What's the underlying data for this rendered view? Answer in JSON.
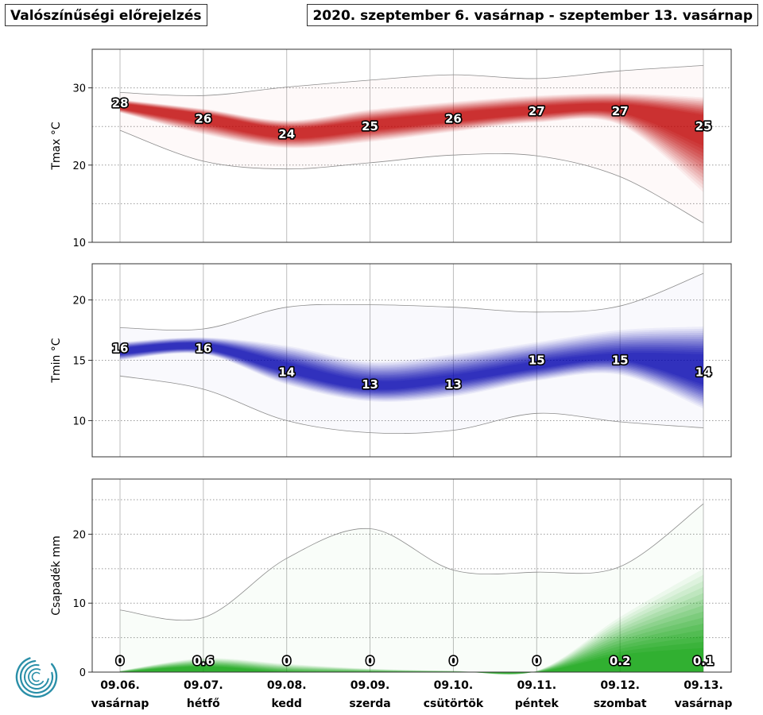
{
  "header": {
    "left_title": "Valószínűségi előrejelzés",
    "right_title": "2020. szeptember 6. vasárnap - szeptember 13. vasárnap"
  },
  "x_axis": {
    "dates": [
      "09.06.",
      "09.07.",
      "09.08.",
      "09.09.",
      "09.10.",
      "09.11.",
      "09.12.",
      "09.13."
    ],
    "days": [
      "vasárnap",
      "hétfő",
      "kedd",
      "szerda",
      "csütörtök",
      "péntek",
      "szombat",
      "vasárnap"
    ]
  },
  "logo": {
    "icon": "weather-service-logo-icon",
    "color": "#2a8fa8"
  },
  "chart_data": [
    {
      "type": "area",
      "ylabel": "Tmax °C",
      "ylim": [
        10,
        35
      ],
      "yticks": [
        10,
        20,
        30
      ],
      "grid": true,
      "color": "#c00000",
      "median": [
        28,
        26,
        24,
        25,
        26,
        27,
        27,
        25
      ],
      "labels": [
        "28",
        "26",
        "24",
        "25",
        "26",
        "27",
        "27",
        "25"
      ],
      "band_inner_low": [
        27.3,
        25.4,
        23.5,
        24.5,
        25.6,
        26.6,
        26.8,
        22.5
      ],
      "band_inner_high": [
        28.0,
        26.6,
        24.8,
        25.8,
        26.8,
        27.6,
        27.9,
        26.5
      ],
      "band_outer_low": [
        26.8,
        24.0,
        22.2,
        23.0,
        24.3,
        25.5,
        25.2,
        16.5
      ],
      "band_outer_high": [
        28.5,
        27.3,
        25.8,
        27.2,
        28.2,
        29.0,
        29.3,
        28.8
      ],
      "min_line": [
        24.5,
        20.5,
        19.5,
        20.3,
        21.3,
        21.2,
        18.5,
        12.5
      ],
      "max_line": [
        29.4,
        29.0,
        30.1,
        31.0,
        31.7,
        31.2,
        32.2,
        32.9
      ]
    },
    {
      "type": "area",
      "ylabel": "Tmin °C",
      "ylim": [
        7,
        23
      ],
      "yticks": [
        10,
        15,
        20
      ],
      "grid": true,
      "color": "#0000b0",
      "median": [
        16,
        16,
        14,
        13,
        13,
        15,
        15,
        14
      ],
      "labels": [
        "16",
        "16",
        "14",
        "13",
        "13",
        "15",
        "15",
        "14"
      ],
      "band_inner_low": [
        15.5,
        15.9,
        14.0,
        12.6,
        13.2,
        14.3,
        15.0,
        13.0
      ],
      "band_inner_high": [
        16.0,
        16.4,
        14.8,
        13.3,
        13.8,
        14.9,
        15.6,
        15.5
      ],
      "band_outer_low": [
        15.0,
        15.5,
        13.0,
        11.6,
        12.0,
        13.3,
        13.8,
        11.0
      ],
      "band_outer_high": [
        16.5,
        16.9,
        16.2,
        14.9,
        15.5,
        16.5,
        17.5,
        17.8
      ],
      "min_line": [
        13.7,
        12.6,
        10.0,
        9.0,
        9.2,
        10.6,
        9.9,
        9.4
      ],
      "max_line": [
        17.7,
        17.6,
        19.4,
        19.6,
        19.4,
        19.0,
        19.5,
        22.2
      ]
    },
    {
      "type": "area",
      "ylabel": "Csapadék mm",
      "ylim": [
        0,
        28
      ],
      "yticks": [
        0,
        10,
        20
      ],
      "grid": true,
      "color": "#00a000",
      "median": [
        0,
        0.6,
        0,
        0,
        0,
        0,
        0.2,
        0.1
      ],
      "labels": [
        "0",
        "0.6",
        "0",
        "0",
        "0",
        "0",
        "0.2",
        "0.1"
      ],
      "band_inner_low": [
        0,
        0,
        0,
        0,
        0,
        0,
        0,
        0
      ],
      "band_inner_high": [
        0,
        0.8,
        0,
        0,
        0,
        0,
        2.5,
        3.5
      ],
      "band_outer_low": [
        0,
        0,
        0,
        0,
        0,
        0,
        0,
        0
      ],
      "band_outer_high": [
        0.2,
        2.0,
        1.2,
        0.5,
        0.2,
        0.2,
        8.0,
        15.0
      ],
      "min_line": [
        0,
        0,
        0,
        0,
        0,
        0,
        0,
        0
      ],
      "max_line": [
        9.0,
        7.9,
        16.5,
        20.8,
        14.8,
        14.5,
        15.3,
        24.4
      ]
    }
  ]
}
